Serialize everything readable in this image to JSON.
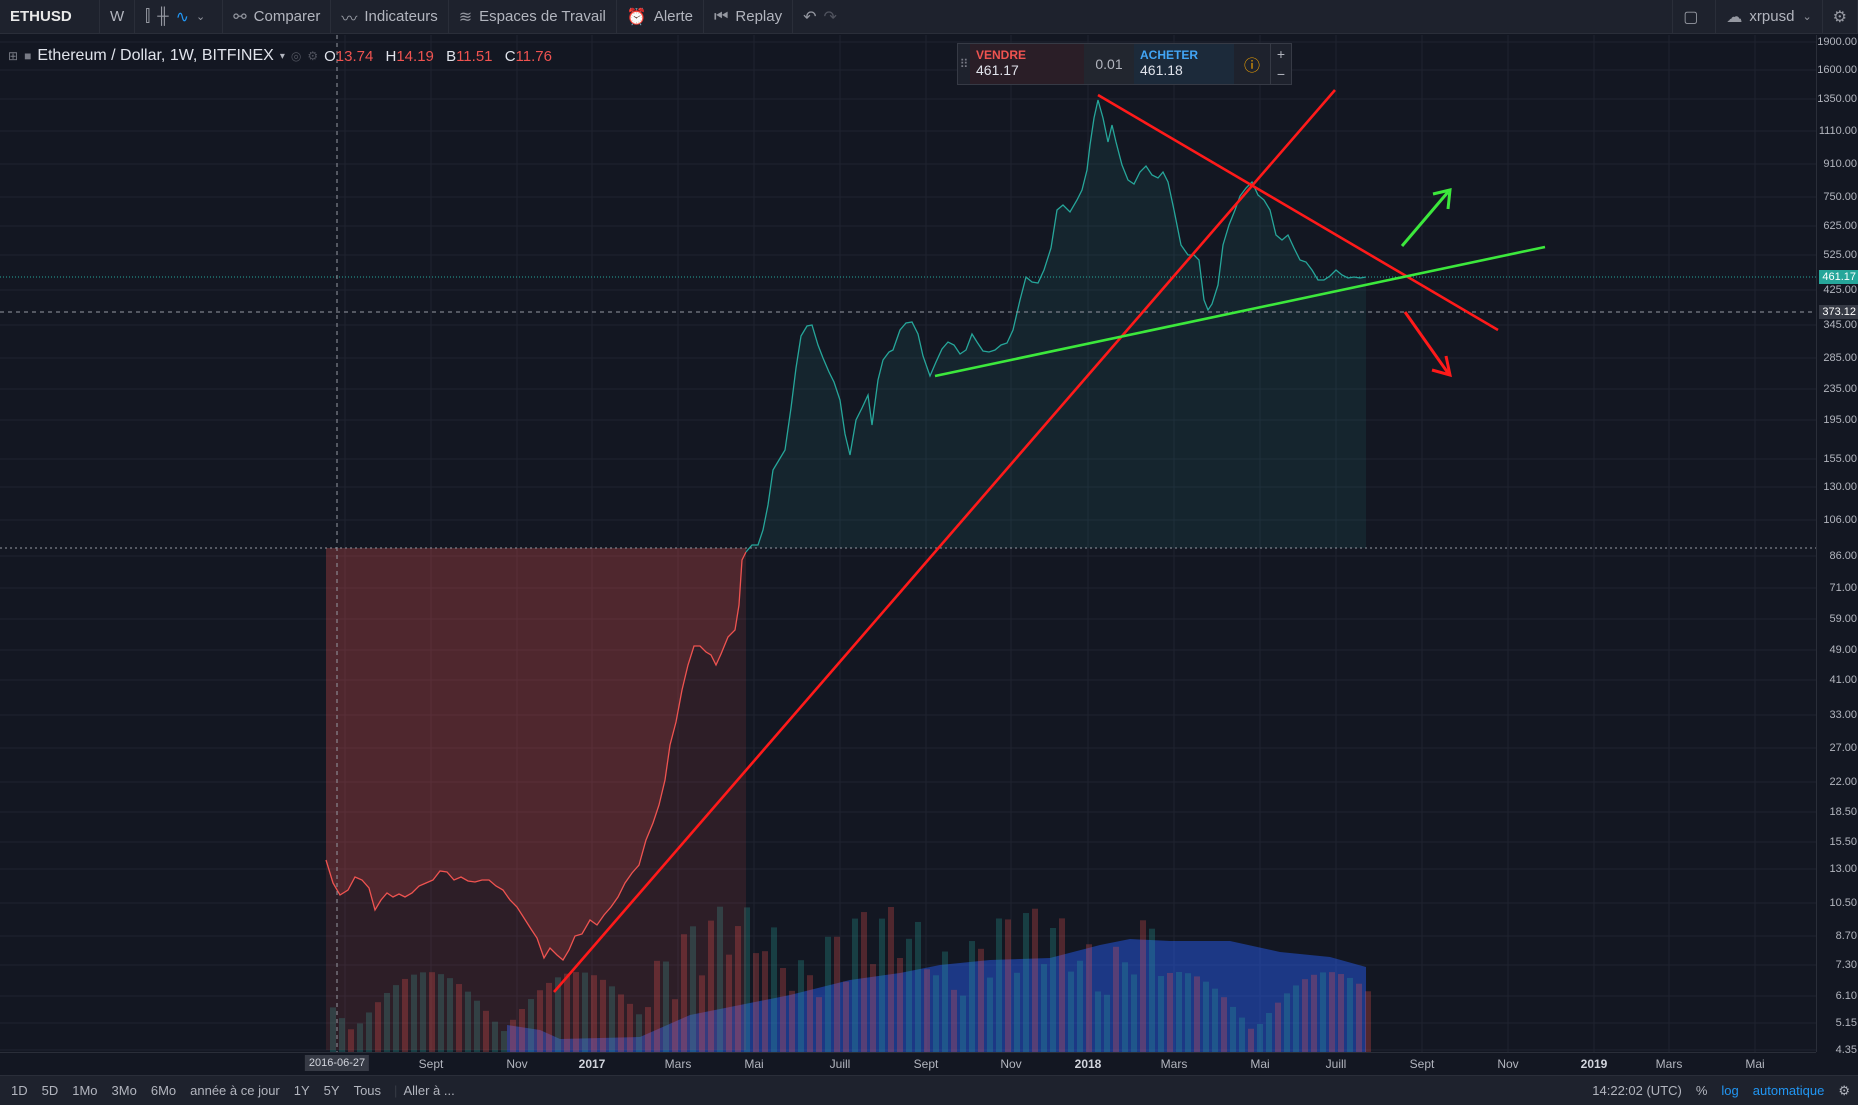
{
  "toolbar": {
    "symbol": "ETHUSD",
    "interval": "W",
    "compare_label": "Comparer",
    "indicators_label": "Indicateurs",
    "workspaces_label": "Espaces de Travail",
    "alert_label": "Alerte",
    "replay_label": "Replay",
    "account_label": "xrpusd"
  },
  "legend": {
    "title": "Ethereum / Dollar, 1W, BITFINEX",
    "o_label": "O",
    "o_value": "13.74",
    "h_label": "H",
    "h_value": "14.19",
    "b_label": "B",
    "b_value": "11.51",
    "c_label": "C",
    "c_value": "11.76"
  },
  "trade_panel": {
    "sell_label": "VENDRE",
    "sell_price": "461.17",
    "spread": "0.01",
    "buy_label": "ACHETER",
    "buy_price": "461.18"
  },
  "y_axis": {
    "labels": [
      "1900.00",
      "1600.00",
      "1350.00",
      "1110.00",
      "910.00",
      "750.00",
      "625.00",
      "525.00",
      "425.00",
      "345.00",
      "285.00",
      "235.00",
      "195.00",
      "155.00",
      "130.00",
      "106.00",
      "86.00",
      "71.00",
      "59.00",
      "49.00",
      "41.00",
      "33.00",
      "27.00",
      "22.00",
      "18.50",
      "15.50",
      "13.00",
      "10.50",
      "8.70",
      "7.30",
      "6.10",
      "5.15",
      "4.35"
    ],
    "last_price": "461.17",
    "crosshair_price": "373.12"
  },
  "x_axis": {
    "labels": [
      "Sept",
      "Nov",
      "2017",
      "Mars",
      "Mai",
      "Juill",
      "Sept",
      "Nov",
      "2018",
      "Mars",
      "Mai",
      "Juill",
      "Sept",
      "Nov",
      "2019",
      "Mars",
      "Mai"
    ],
    "crosshair_date": "2016-06-27"
  },
  "bottom": {
    "ranges": [
      "1D",
      "5D",
      "1Mo",
      "3Mo",
      "6Mo",
      "année à ce jour",
      "1Y",
      "5Y",
      "Tous"
    ],
    "goto": "Aller à ...",
    "time": "14:22:02 (UTC)",
    "percent": "%",
    "log": "log",
    "auto": "automatique"
  },
  "colors": {
    "background": "#131722",
    "bull_area": "#26a69a",
    "bear_area": "#ef5350",
    "trend_red": "#ff1a1a",
    "trend_green": "#3ce83c",
    "volume_blue": "#2962ff"
  }
}
